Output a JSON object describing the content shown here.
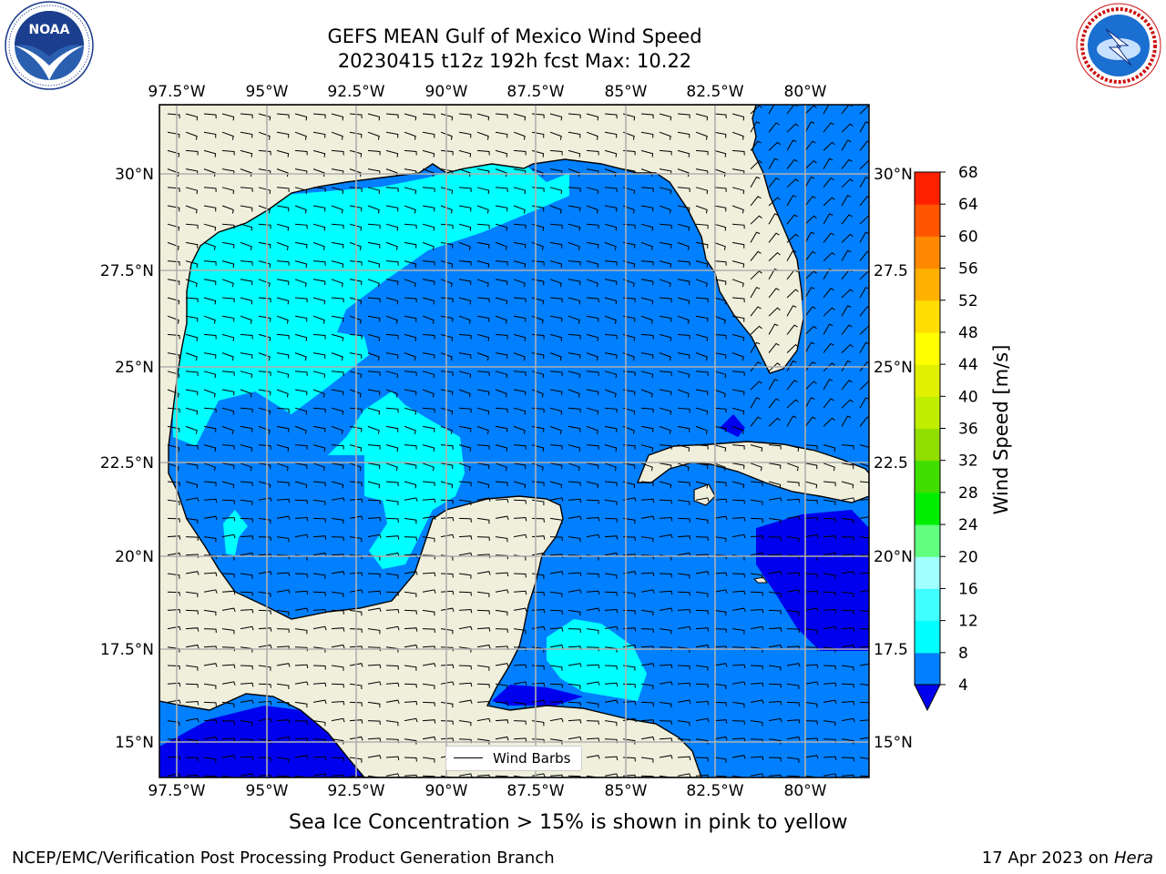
{
  "header": {
    "title_line1": "GEFS MEAN Gulf of Mexico Wind Speed",
    "title_line2": "20230415 t12z 192h fcst   Max: 10.22"
  },
  "logos": {
    "left": "noaa-logo",
    "left_text": "NOAA",
    "left_ring_text": "NATIONAL OCEANIC AND ATMOSPHERIC ADMINISTRATION · U.S. DEPARTMENT OF COMMERCE",
    "right": "nws-logo",
    "right_ring_text": "NATIONAL WEATHER SERVICE"
  },
  "map": {
    "lon_labels": [
      "97.5°W",
      "95°W",
      "92.5°W",
      "90°W",
      "87.5°W",
      "85°W",
      "82.5°W",
      "80°W"
    ],
    "lat_labels_left": [
      "30°N",
      "27.5°N",
      "25°N",
      "22.5°N",
      "20°N",
      "17.5°N",
      "15°N"
    ],
    "lat_labels_right": [
      "30°N",
      "27.5",
      "25°N",
      "22.5",
      "20°N",
      "17.5",
      "15°N"
    ],
    "legend_label": "Wind Barbs",
    "colors": {
      "land": "#efefdc",
      "ocean_4_8": "#0080ff",
      "ocean_8_12": "#00ffff",
      "ocean_lt_4": "#0000ee",
      "grid": "#b0b0b0"
    }
  },
  "colorbar": {
    "label": "Wind Speed [m/s]",
    "ticks": [
      "4",
      "8",
      "12",
      "16",
      "20",
      "24",
      "28",
      "32",
      "36",
      "40",
      "44",
      "48",
      "52",
      "56",
      "60",
      "64",
      "68"
    ],
    "colors": [
      "#0080ff",
      "#00ffff",
      "#40ffff",
      "#a0ffff",
      "#60ff80",
      "#00ee00",
      "#40dd00",
      "#90dd00",
      "#c0ee00",
      "#e0f000",
      "#ffff00",
      "#ffdd00",
      "#ffb000",
      "#ff8800",
      "#ff5500",
      "#ff2000"
    ],
    "under_color": "#0000ee"
  },
  "note": "Sea Ice Concentration > 15% is shown in pink to yellow",
  "footer": {
    "left": "NCEP/EMC/Verification Post Processing Product Generation Branch",
    "right_date": "17 Apr 2023 on ",
    "right_machine": "Hera"
  }
}
